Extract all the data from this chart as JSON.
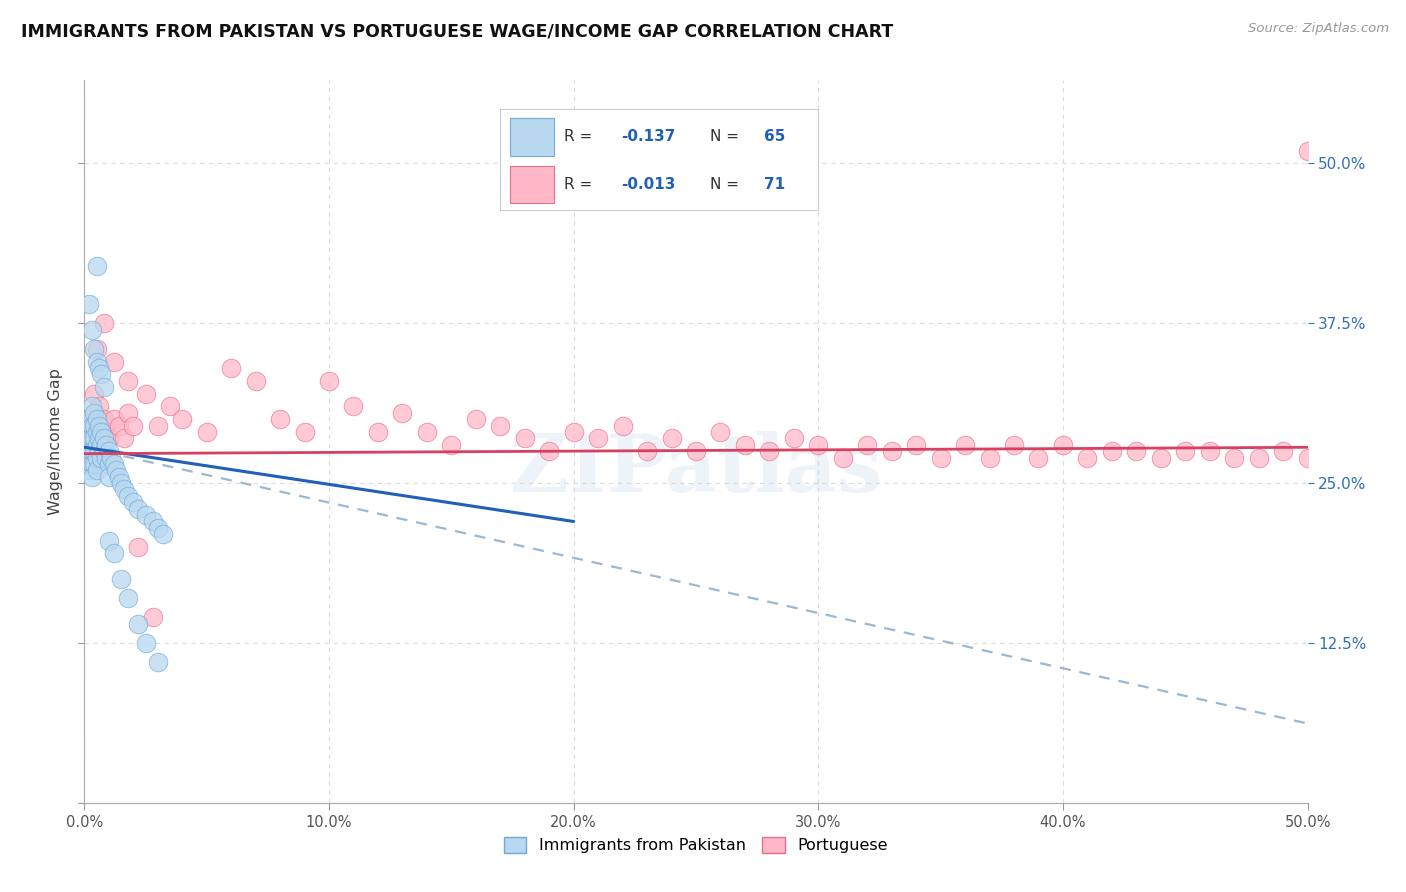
{
  "title": "IMMIGRANTS FROM PAKISTAN VS PORTUGUESE WAGE/INCOME GAP CORRELATION CHART",
  "source": "Source: ZipAtlas.com",
  "ylabel": "Wage/Income Gap",
  "right_yticks": [
    0.125,
    0.25,
    0.375,
    0.5
  ],
  "right_yticklabels": [
    "12.5%",
    "25.0%",
    "37.5%",
    "50.0%"
  ],
  "xlim": [
    0.0,
    0.5
  ],
  "ylim": [
    0.0,
    0.565
  ],
  "legend_label1": "Immigrants from Pakistan",
  "legend_label2": "Portuguese",
  "watermark": "ZIPatlas",
  "pakistan_x": [
    0.001,
    0.001,
    0.001,
    0.002,
    0.002,
    0.002,
    0.002,
    0.002,
    0.003,
    0.003,
    0.003,
    0.003,
    0.003,
    0.003,
    0.004,
    0.004,
    0.004,
    0.004,
    0.004,
    0.005,
    0.005,
    0.005,
    0.005,
    0.005,
    0.006,
    0.006,
    0.006,
    0.007,
    0.007,
    0.007,
    0.008,
    0.008,
    0.009,
    0.009,
    0.01,
    0.01,
    0.01,
    0.011,
    0.012,
    0.013,
    0.014,
    0.015,
    0.016,
    0.018,
    0.02,
    0.022,
    0.025,
    0.028,
    0.03,
    0.032,
    0.002,
    0.003,
    0.004,
    0.005,
    0.005,
    0.006,
    0.007,
    0.008,
    0.01,
    0.012,
    0.015,
    0.018,
    0.022,
    0.025,
    0.03
  ],
  "pakistan_y": [
    0.285,
    0.275,
    0.265,
    0.3,
    0.29,
    0.28,
    0.27,
    0.26,
    0.31,
    0.295,
    0.285,
    0.275,
    0.265,
    0.255,
    0.305,
    0.295,
    0.285,
    0.275,
    0.265,
    0.3,
    0.29,
    0.28,
    0.27,
    0.26,
    0.295,
    0.285,
    0.275,
    0.29,
    0.28,
    0.27,
    0.285,
    0.275,
    0.28,
    0.27,
    0.275,
    0.265,
    0.255,
    0.27,
    0.265,
    0.26,
    0.255,
    0.25,
    0.245,
    0.24,
    0.235,
    0.23,
    0.225,
    0.22,
    0.215,
    0.21,
    0.39,
    0.37,
    0.355,
    0.345,
    0.42,
    0.34,
    0.335,
    0.325,
    0.205,
    0.195,
    0.175,
    0.16,
    0.14,
    0.125,
    0.11
  ],
  "portuguese_x": [
    0.002,
    0.003,
    0.004,
    0.005,
    0.006,
    0.007,
    0.008,
    0.009,
    0.01,
    0.012,
    0.014,
    0.016,
    0.018,
    0.02,
    0.025,
    0.03,
    0.035,
    0.04,
    0.05,
    0.06,
    0.07,
    0.08,
    0.09,
    0.1,
    0.11,
    0.12,
    0.13,
    0.14,
    0.15,
    0.16,
    0.17,
    0.18,
    0.19,
    0.2,
    0.21,
    0.22,
    0.23,
    0.24,
    0.25,
    0.26,
    0.27,
    0.28,
    0.29,
    0.3,
    0.31,
    0.32,
    0.33,
    0.34,
    0.35,
    0.36,
    0.37,
    0.38,
    0.39,
    0.4,
    0.41,
    0.42,
    0.43,
    0.44,
    0.45,
    0.46,
    0.47,
    0.48,
    0.49,
    0.5,
    0.005,
    0.008,
    0.012,
    0.018,
    0.022,
    0.028,
    0.5
  ],
  "portuguese_y": [
    0.28,
    0.3,
    0.32,
    0.29,
    0.31,
    0.28,
    0.3,
    0.29,
    0.285,
    0.3,
    0.295,
    0.285,
    0.305,
    0.295,
    0.32,
    0.295,
    0.31,
    0.3,
    0.29,
    0.34,
    0.33,
    0.3,
    0.29,
    0.33,
    0.31,
    0.29,
    0.305,
    0.29,
    0.28,
    0.3,
    0.295,
    0.285,
    0.275,
    0.29,
    0.285,
    0.295,
    0.275,
    0.285,
    0.275,
    0.29,
    0.28,
    0.275,
    0.285,
    0.28,
    0.27,
    0.28,
    0.275,
    0.28,
    0.27,
    0.28,
    0.27,
    0.28,
    0.27,
    0.28,
    0.27,
    0.275,
    0.275,
    0.27,
    0.275,
    0.275,
    0.27,
    0.27,
    0.275,
    0.27,
    0.355,
    0.375,
    0.345,
    0.33,
    0.2,
    0.145,
    0.51
  ],
  "blue_line_x": [
    0.0,
    0.2
  ],
  "blue_line_y": [
    0.278,
    0.22
  ],
  "pink_line_x": [
    0.0,
    0.5
  ],
  "pink_line_y": [
    0.273,
    0.278
  ],
  "dash_line_x": [
    0.0,
    0.5
  ],
  "dash_line_y": [
    0.278,
    0.062
  ]
}
